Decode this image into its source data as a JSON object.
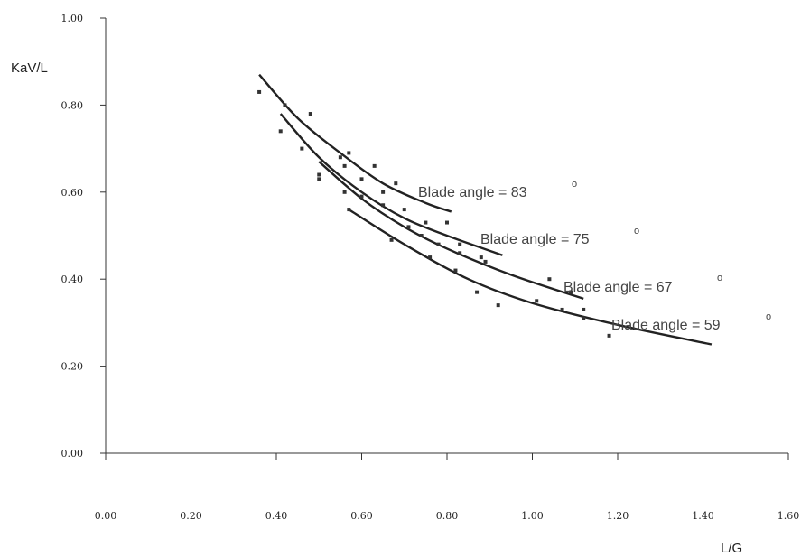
{
  "chart_data": {
    "type": "scatter",
    "xlabel": "L/G",
    "ylabel": "KaV/L",
    "xlim": [
      0,
      1.6
    ],
    "ylim": [
      0,
      1.0
    ],
    "x_ticks": [
      "0.00",
      "0.20",
      "0.40",
      "0.60",
      "0.80",
      "1.00",
      "1.20",
      "1.40",
      "1.60"
    ],
    "y_ticks": [
      "0.00",
      "0.20",
      "0.40",
      "0.60",
      "0.80",
      "1.00"
    ],
    "grid": false,
    "legend": "none",
    "series": [
      {
        "name": "Blade angle = 83",
        "degree_mark": "o",
        "fit": [
          [
            0.36,
            0.87
          ],
          [
            0.45,
            0.77
          ],
          [
            0.55,
            0.69
          ],
          [
            0.65,
            0.62
          ],
          [
            0.75,
            0.575
          ],
          [
            0.81,
            0.555
          ]
        ],
        "points": [
          [
            0.36,
            0.83
          ],
          [
            0.42,
            0.8
          ],
          [
            0.48,
            0.78
          ],
          [
            0.55,
            0.68
          ],
          [
            0.57,
            0.69
          ],
          [
            0.63,
            0.66
          ],
          [
            0.68,
            0.62
          ]
        ]
      },
      {
        "name": "Blade angle = 75",
        "degree_mark": "o",
        "fit": [
          [
            0.41,
            0.78
          ],
          [
            0.5,
            0.68
          ],
          [
            0.6,
            0.6
          ],
          [
            0.7,
            0.54
          ],
          [
            0.8,
            0.5
          ],
          [
            0.93,
            0.455
          ]
        ],
        "points": [
          [
            0.41,
            0.74
          ],
          [
            0.46,
            0.7
          ],
          [
            0.5,
            0.63
          ],
          [
            0.56,
            0.66
          ],
          [
            0.6,
            0.63
          ],
          [
            0.65,
            0.6
          ],
          [
            0.7,
            0.56
          ],
          [
            0.75,
            0.53
          ],
          [
            0.8,
            0.53
          ],
          [
            0.83,
            0.48
          ],
          [
            0.88,
            0.45
          ]
        ]
      },
      {
        "name": "Blade angle = 67",
        "degree_mark": "o",
        "fit": [
          [
            0.5,
            0.67
          ],
          [
            0.6,
            0.585
          ],
          [
            0.7,
            0.52
          ],
          [
            0.8,
            0.47
          ],
          [
            0.95,
            0.41
          ],
          [
            1.12,
            0.355
          ]
        ],
        "points": [
          [
            0.5,
            0.64
          ],
          [
            0.56,
            0.6
          ],
          [
            0.6,
            0.59
          ],
          [
            0.65,
            0.57
          ],
          [
            0.71,
            0.52
          ],
          [
            0.74,
            0.5
          ],
          [
            0.78,
            0.48
          ],
          [
            0.83,
            0.46
          ],
          [
            0.89,
            0.44
          ],
          [
            1.04,
            0.4
          ],
          [
            1.09,
            0.37
          ],
          [
            1.12,
            0.33
          ]
        ]
      },
      {
        "name": "Blade angle = 59",
        "degree_mark": "o",
        "fit": [
          [
            0.57,
            0.56
          ],
          [
            0.7,
            0.48
          ],
          [
            0.85,
            0.4
          ],
          [
            1.0,
            0.345
          ],
          [
            1.2,
            0.295
          ],
          [
            1.42,
            0.25
          ]
        ],
        "points": [
          [
            0.57,
            0.56
          ],
          [
            0.67,
            0.49
          ],
          [
            0.76,
            0.45
          ],
          [
            0.82,
            0.42
          ],
          [
            0.87,
            0.37
          ],
          [
            0.92,
            0.34
          ],
          [
            1.01,
            0.35
          ],
          [
            1.07,
            0.33
          ],
          [
            1.12,
            0.31
          ],
          [
            1.18,
            0.27
          ]
        ]
      }
    ]
  }
}
